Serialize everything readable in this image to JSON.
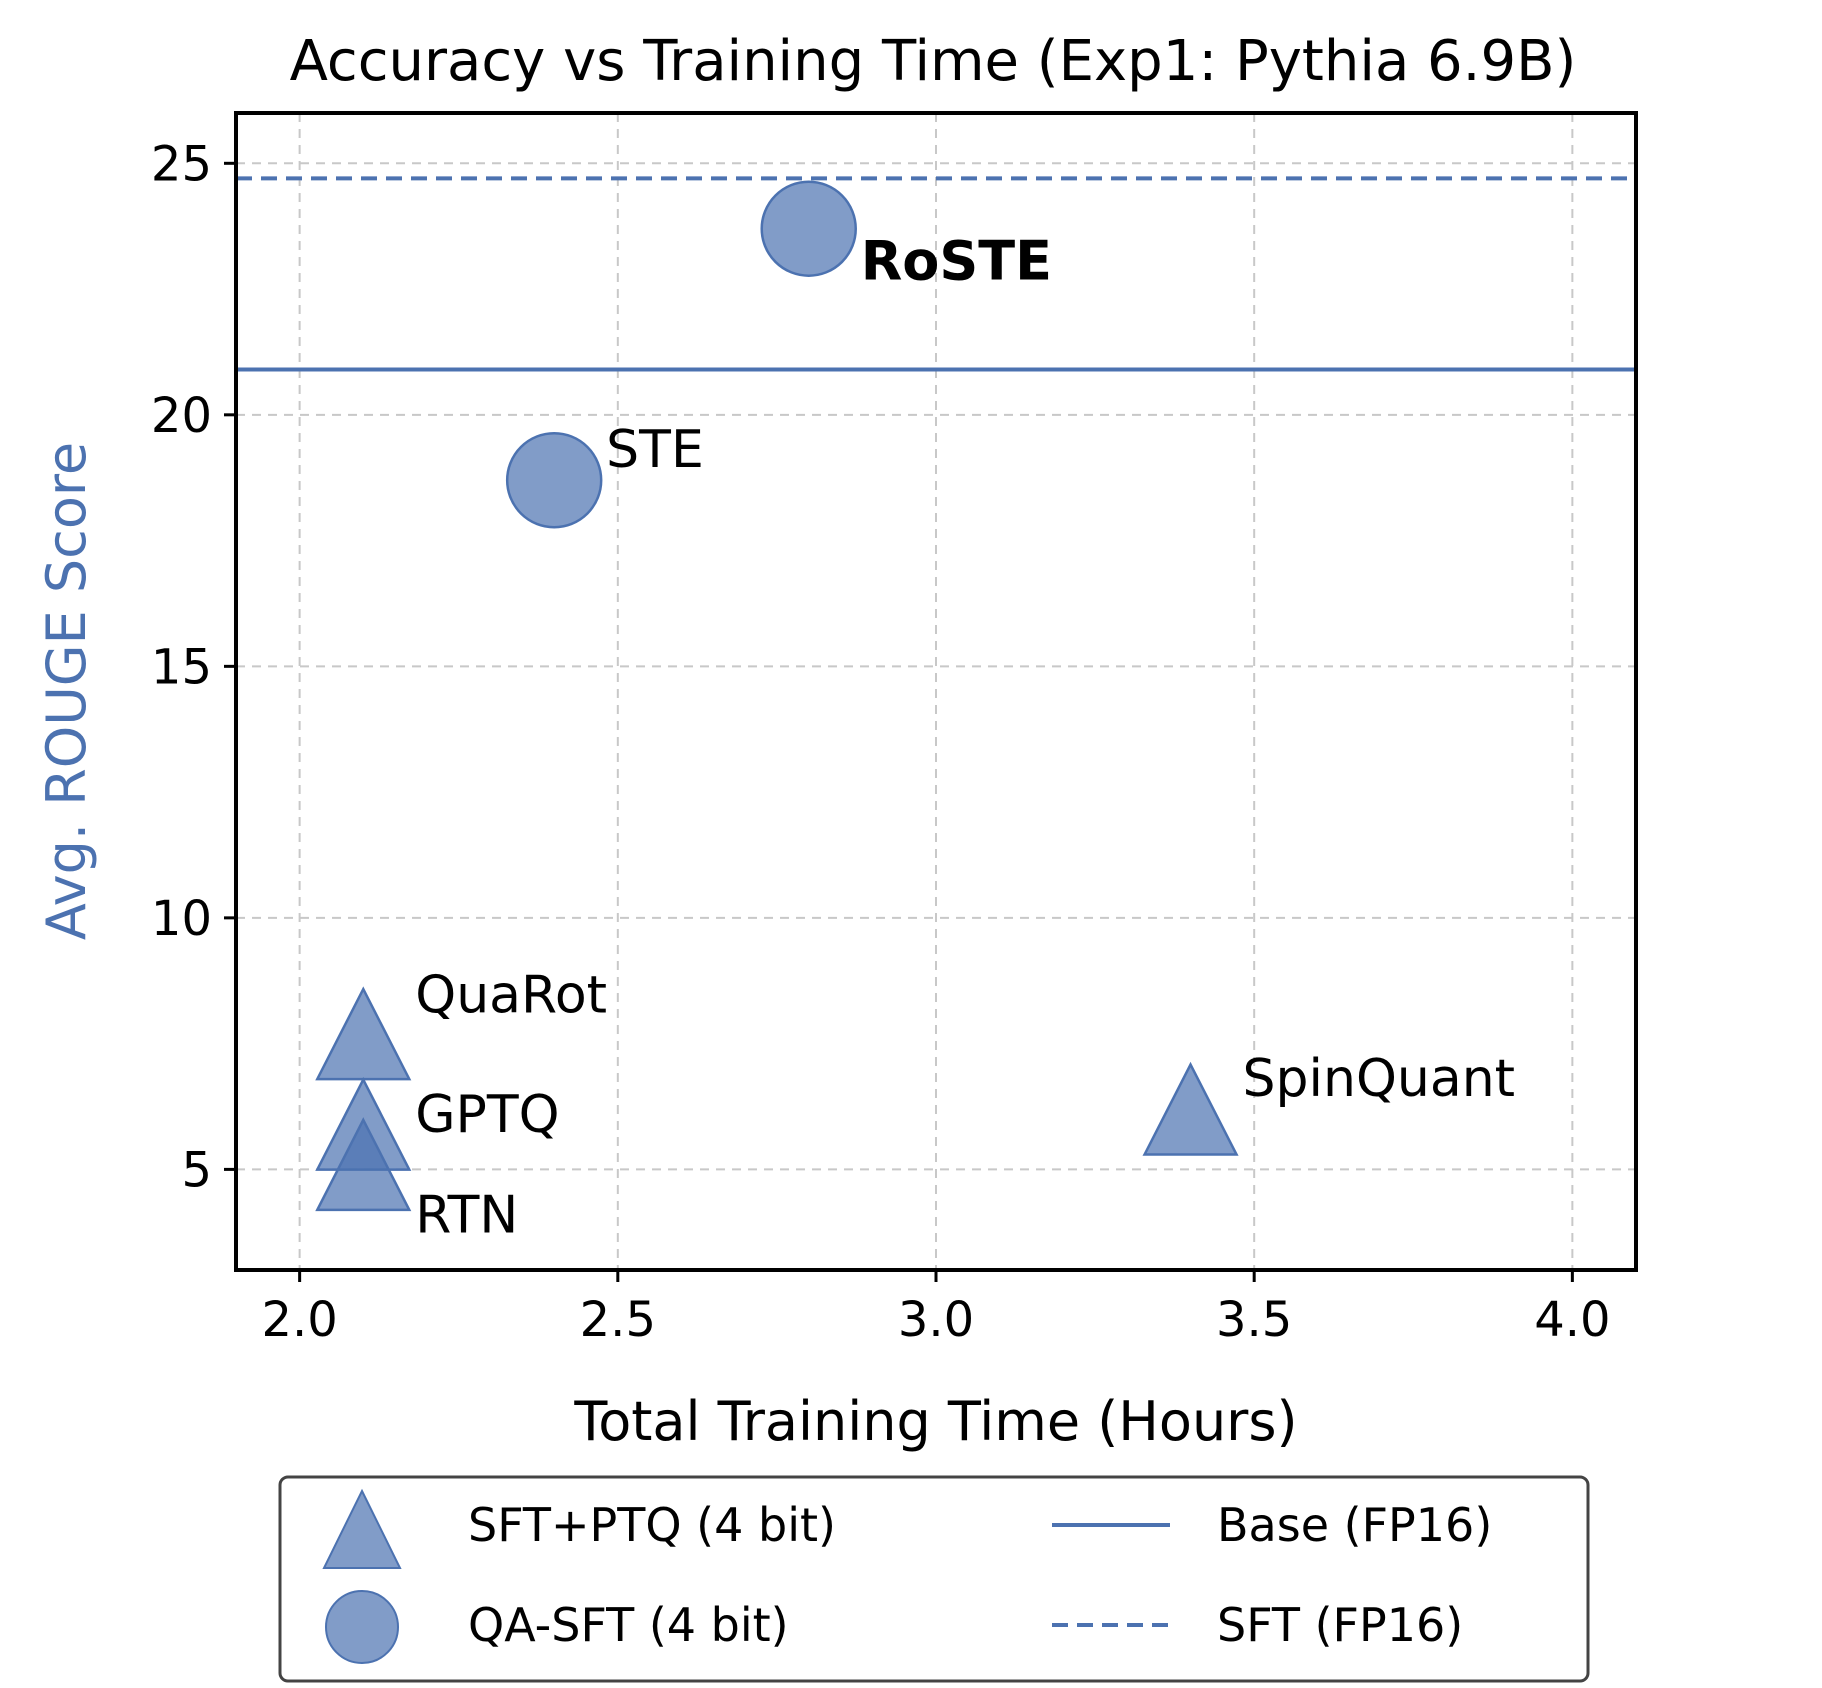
{
  "chart_data": {
    "type": "scatter",
    "title": "Accuracy vs Training Time (Exp1: Pythia 6.9B)",
    "xlabel": "Total Training Time (Hours)",
    "ylabel": "Avg. ROUGE Score",
    "xlim": [
      1.9,
      4.1
    ],
    "ylim": [
      3.0,
      26.0
    ],
    "xticks": [
      2.0,
      2.5,
      3.0,
      3.5,
      4.0
    ],
    "xtick_labels": [
      "2.0",
      "2.5",
      "3.0",
      "3.5",
      "4.0"
    ],
    "yticks": [
      5,
      10,
      15,
      20,
      25
    ],
    "ytick_labels": [
      "5",
      "10",
      "15",
      "20",
      "25"
    ],
    "grid": true,
    "legend_position": "below",
    "colors": {
      "marker": "#4c72b0",
      "line": "#4c72b0",
      "ylabel": "#4c72b0"
    },
    "points": [
      {
        "label": "RoSTE",
        "x": 2.8,
        "y": 23.7,
        "marker": "circle",
        "bold": true
      },
      {
        "label": "STE",
        "x": 2.4,
        "y": 18.7,
        "marker": "circle",
        "bold": false
      },
      {
        "label": "QuaRot",
        "x": 2.1,
        "y": 7.6,
        "marker": "triangle",
        "bold": false
      },
      {
        "label": "GPTQ",
        "x": 2.1,
        "y": 5.8,
        "marker": "triangle",
        "bold": false
      },
      {
        "label": "RTN",
        "x": 2.1,
        "y": 5.0,
        "marker": "triangle",
        "bold": false
      },
      {
        "label": "SpinQuant",
        "x": 3.4,
        "y": 6.1,
        "marker": "triangle",
        "bold": false
      }
    ],
    "hlines": [
      {
        "name": "Base (FP16)",
        "y": 20.9,
        "style": "solid"
      },
      {
        "name": "SFT (FP16)",
        "y": 24.7,
        "style": "dashed"
      }
    ],
    "legend": [
      {
        "label": "SFT+PTQ (4 bit)",
        "kind": "triangle"
      },
      {
        "label": "QA-SFT (4 bit)",
        "kind": "circle"
      },
      {
        "label": "Base (FP16)",
        "kind": "solid-line"
      },
      {
        "label": "SFT (FP16)",
        "kind": "dashed-line"
      }
    ]
  }
}
